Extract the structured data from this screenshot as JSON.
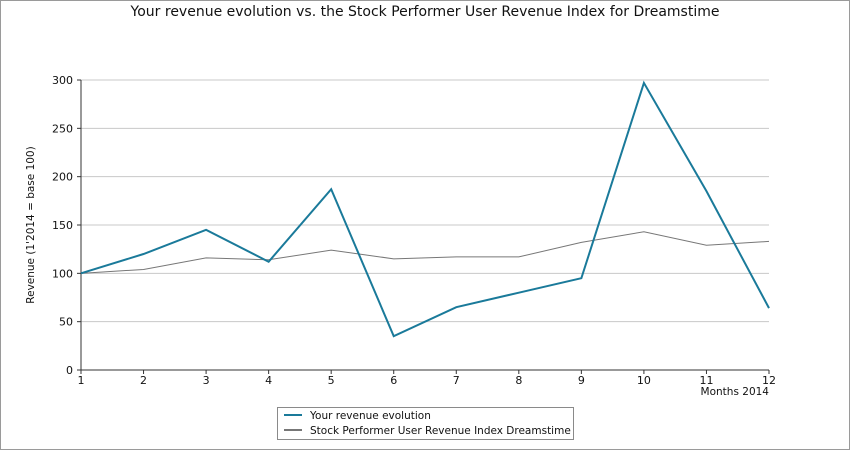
{
  "chart_data": {
    "type": "line",
    "title": "Your revenue evolution vs. the Stock Performer User Revenue Index for Dreamstime",
    "xlabel": "Months 2014",
    "ylabel": "Revenue (1'2014 = base 100)",
    "x": [
      1,
      2,
      3,
      4,
      5,
      6,
      7,
      8,
      9,
      10,
      11,
      12
    ],
    "x_ticks": [
      "1",
      "2",
      "3",
      "4",
      "5",
      "6",
      "7",
      "8",
      "9",
      "10",
      "11",
      "12"
    ],
    "y_ticks": [
      "0",
      "50",
      "100",
      "150",
      "200",
      "250",
      "300"
    ],
    "ylim": [
      0,
      300
    ],
    "xlim": [
      1,
      12
    ],
    "grid": "horizontal",
    "legend_position": "bottom-center",
    "series": [
      {
        "name": "Your revenue evolution",
        "color": "#1a7a9a",
        "values": [
          100,
          120,
          145,
          112,
          187,
          35,
          65,
          80,
          95,
          297,
          185,
          64
        ]
      },
      {
        "name": "Stock Performer User Revenue Index Dreamstime",
        "color": "#777777",
        "values": [
          100,
          104,
          116,
          114,
          124,
          115,
          117,
          117,
          132,
          143,
          129,
          133
        ]
      }
    ]
  }
}
